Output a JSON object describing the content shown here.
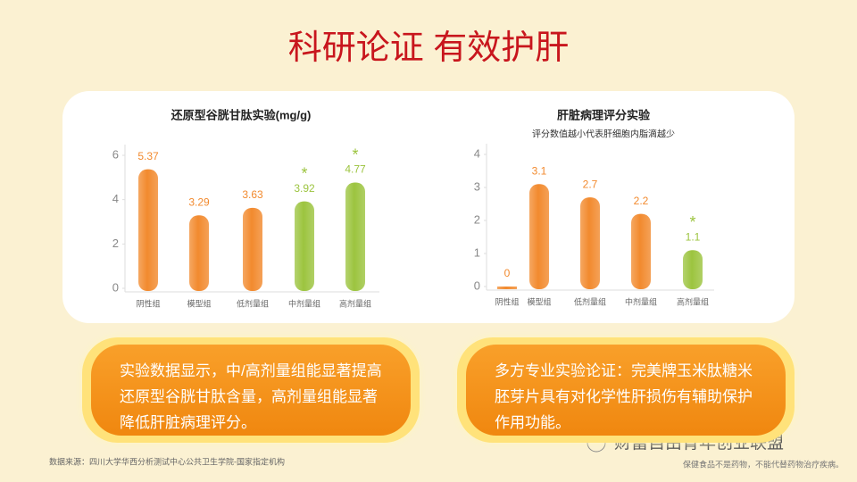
{
  "slide": {
    "title": "科研论证 有效护肝",
    "notes": [
      "实验数据显示，中/高剂量组能显著提高还原型谷胱甘肽含量，高剂量组能显著降低肝脏病理评分。",
      "多方专业实验论证：完美牌玉米肽糖米胚芽片具有对化学性肝损伤有辅助保护作用功能。"
    ],
    "source": "数据来源：四川大学华西分析测试中心公共卫生学院-国家指定机构",
    "watermark": "财富自由青年创业联盟",
    "disclaimer": "保健食品不是药物，不能代替药物治疗疾病。"
  },
  "chart_data": [
    {
      "type": "bar",
      "title": "还原型谷胱甘肽实验(mg/g)",
      "categories": [
        "阴性组",
        "模型组",
        "低剂量组",
        "中剂量组",
        "高剂量组"
      ],
      "values": [
        5.37,
        3.29,
        3.63,
        3.92,
        4.77
      ],
      "colors": [
        "#f28a2e",
        "#f28a2e",
        "#f28a2e",
        "#9cc43f",
        "#9cc43f"
      ],
      "significance": [
        null,
        null,
        null,
        "*",
        "*"
      ],
      "ylim": [
        0,
        6
      ],
      "yticks": [
        0,
        2,
        4,
        6
      ]
    },
    {
      "type": "bar",
      "title": "肝脏病理评分实验",
      "subtitle": "评分数值越小代表肝细胞内脂滴越少",
      "categories": [
        "阴性组",
        "模型组",
        "低剂量组",
        "中剂量组",
        "高剂量组"
      ],
      "values": [
        0,
        3.1,
        2.7,
        2.2,
        1.1
      ],
      "colors": [
        "#f28a2e",
        "#f28a2e",
        "#f28a2e",
        "#f28a2e",
        "#9cc43f"
      ],
      "significance": [
        null,
        null,
        null,
        null,
        "*"
      ],
      "ylim": [
        0,
        4
      ],
      "yticks": [
        0,
        1,
        2,
        3,
        4
      ]
    }
  ]
}
